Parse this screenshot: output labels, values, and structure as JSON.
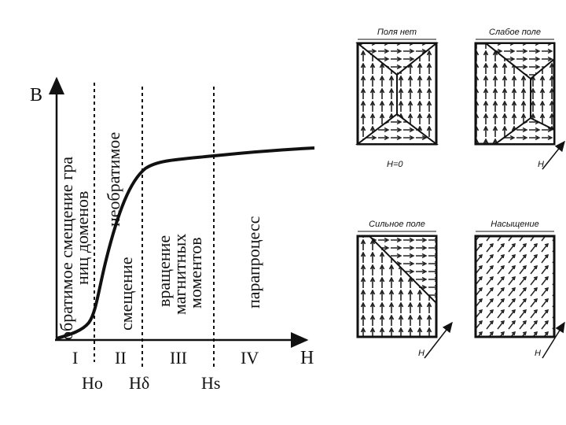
{
  "graph": {
    "y_axis": "B",
    "x_axis": "H",
    "regions": [
      "I",
      "II",
      "III",
      "IV"
    ],
    "fields": [
      "Ho",
      "Hδ",
      "Hs"
    ],
    "region_labels": [
      {
        "lines": [
          "обратимое смещение гра",
          "ниц доменов"
        ]
      },
      {
        "lines": [
          "необратимое",
          "смещение"
        ]
      },
      {
        "lines": [
          "вращение",
          "магнитных",
          "моментов"
        ]
      },
      {
        "lines": [
          "парапроцесс"
        ]
      }
    ]
  },
  "domains": [
    {
      "title": "Поля нет",
      "field_label": "H=0"
    },
    {
      "title": "Слабое поле",
      "field_label": "H"
    },
    {
      "title": "Сильное поле",
      "field_label": "H"
    },
    {
      "title": "Насыщение",
      "field_label": "H"
    }
  ]
}
